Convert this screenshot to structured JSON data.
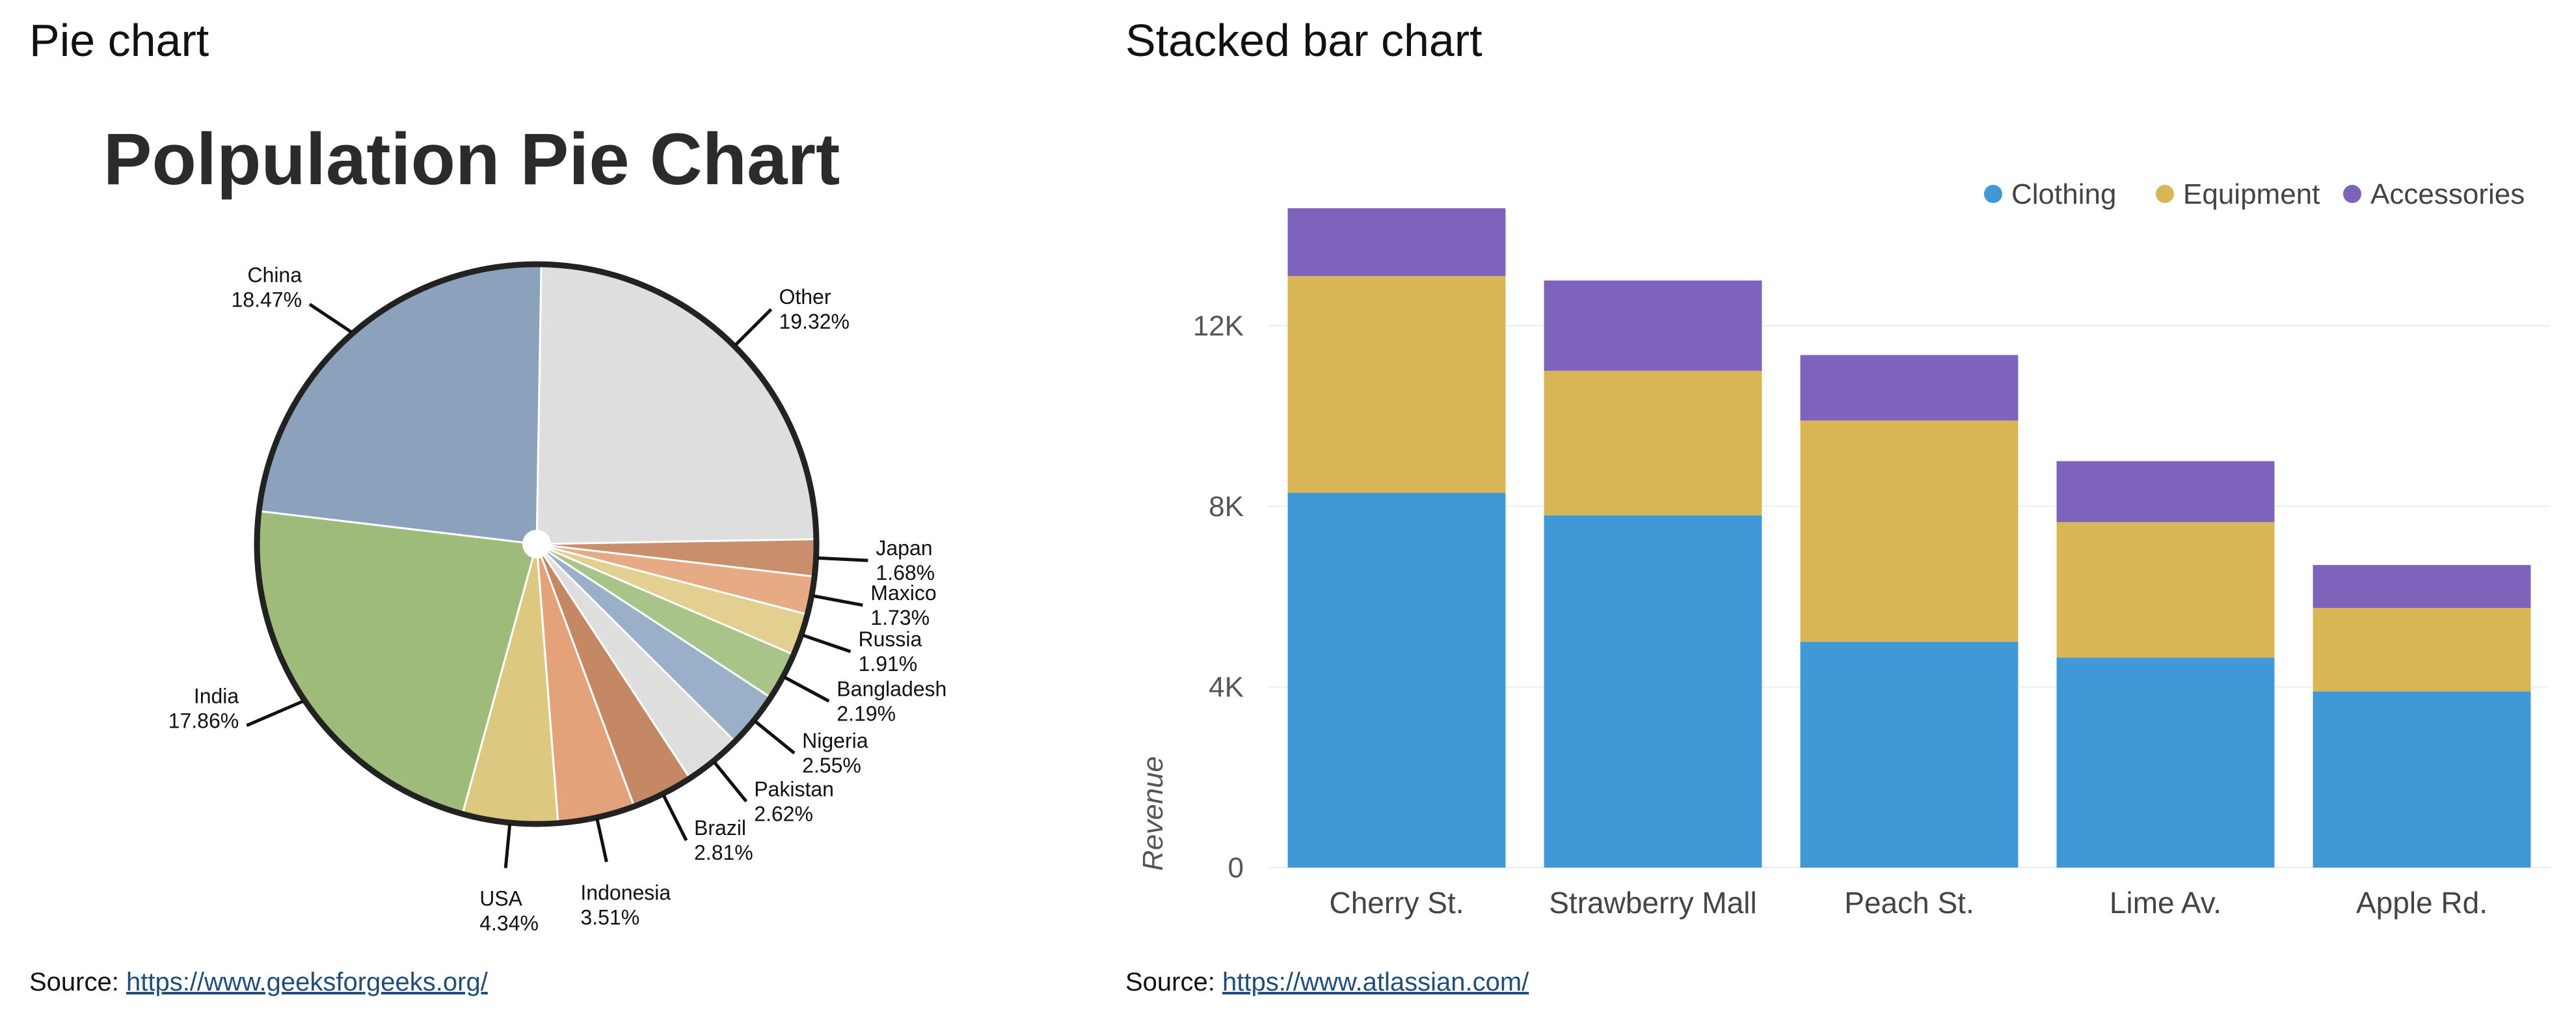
{
  "left_panel": {
    "heading": "Pie chart",
    "source_label": "Source:",
    "source_link": "https://www.geeksforgeeks.org/"
  },
  "right_panel": {
    "heading": "Stacked bar chart",
    "source_label": "Source:",
    "source_link": "https://www.atlassian.com/"
  },
  "chart_data": [
    {
      "type": "pie",
      "title": "Polpulation Pie Chart",
      "slices": [
        {
          "label": "Other",
          "value": 19.32,
          "display": "19.32%",
          "color": "#dedede"
        },
        {
          "label": "China",
          "value": 18.47,
          "display": "18.47%",
          "color": "#8ca2bc"
        },
        {
          "label": "India",
          "value": 17.86,
          "display": "17.86%",
          "color": "#9fbb7a"
        },
        {
          "label": "USA",
          "value": 4.34,
          "display": "4.34%",
          "color": "#ddc880"
        },
        {
          "label": "Indonesia",
          "value": 3.51,
          "display": "3.51%",
          "color": "#e3a27a"
        },
        {
          "label": "Brazil",
          "value": 2.81,
          "display": "2.81%",
          "color": "#c48865"
        },
        {
          "label": "Pakistan",
          "value": 2.62,
          "display": "2.62%",
          "color": "#dedede"
        },
        {
          "label": "Nigeria",
          "value": 2.55,
          "display": "2.55%",
          "color": "#9ab0c8"
        },
        {
          "label": "Bangladesh",
          "value": 2.19,
          "display": "2.19%",
          "color": "#a9c488"
        },
        {
          "label": "Russia",
          "value": 1.91,
          "display": "1.91%",
          "color": "#e3cf8f"
        },
        {
          "label": "Maxico",
          "value": 1.73,
          "display": "1.73%",
          "color": "#e6aa85"
        },
        {
          "label": "Japan",
          "value": 1.68,
          "display": "1.68%",
          "color": "#c98f6c"
        }
      ]
    },
    {
      "type": "bar",
      "stacked": true,
      "categories": [
        "Cherry St.",
        "Strawberry Mall",
        "Peach St.",
        "Lime Av.",
        "Apple Rd."
      ],
      "series": [
        {
          "name": "Clothing",
          "color": "#4198d7",
          "values": [
            8300,
            7800,
            5000,
            4650,
            3900
          ]
        },
        {
          "name": "Equipment",
          "color": "#d8b655",
          "values": [
            4800,
            3200,
            4900,
            3000,
            1850
          ]
        },
        {
          "name": "Accessories",
          "color": "#7e63bd",
          "values": [
            1500,
            2000,
            1450,
            1350,
            950
          ]
        }
      ],
      "ylabel": "Revenue",
      "ylim": [
        0,
        14600
      ],
      "yticks": [
        {
          "value": 0,
          "label": "0"
        },
        {
          "value": 4000,
          "label": "4K"
        },
        {
          "value": 8000,
          "label": "8K"
        },
        {
          "value": 12000,
          "label": "12K"
        }
      ],
      "legend": "top-right",
      "grid": true
    }
  ]
}
